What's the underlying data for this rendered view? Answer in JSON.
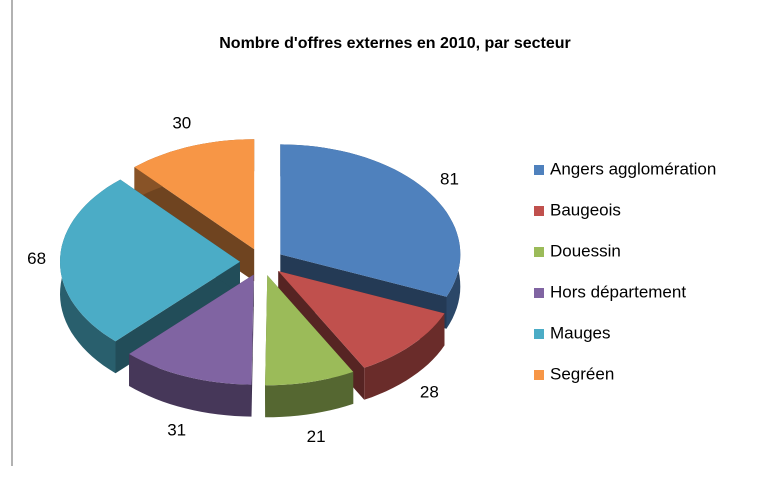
{
  "chart_data": {
    "type": "pie",
    "title": "Nombre d'offres externes en 2010, par secteur",
    "categories": [
      "Angers agglomération",
      "Baugeois",
      "Douessin",
      "Hors département",
      "Mauges",
      "Segréen"
    ],
    "values": [
      81,
      28,
      21,
      31,
      68,
      30
    ],
    "colors": [
      "#4f81bd",
      "#c0504d",
      "#9bbb59",
      "#8064a2",
      "#4bacc6",
      "#f79646"
    ],
    "legend": "right"
  }
}
